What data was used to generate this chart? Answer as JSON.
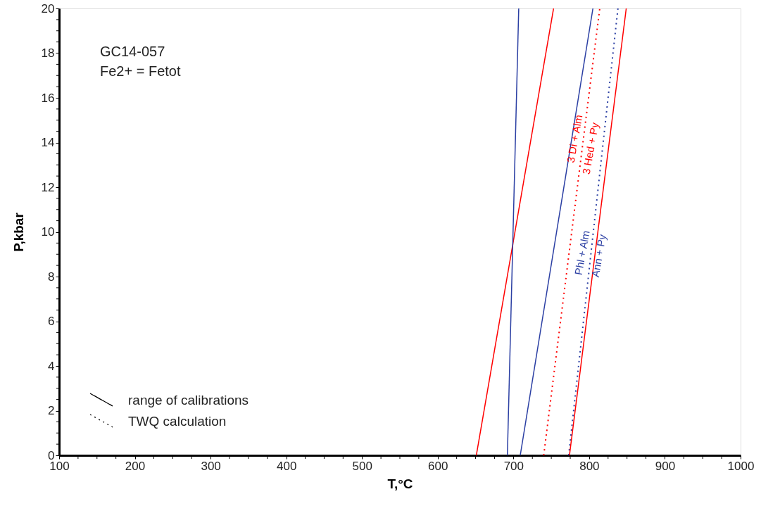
{
  "chart_data": {
    "type": "line",
    "xlabel": "T,°C",
    "ylabel": "P,kbar",
    "xlim": [
      100,
      1000
    ],
    "ylim": [
      0,
      20
    ],
    "xticks": [
      100,
      {
        "value": 125,
        "label": null
      },
      {
        "value": 150,
        "label": null
      },
      {
        "value": 175,
        "label": null
      },
      200,
      {
        "value": 225,
        "label": null
      },
      {
        "value": 250,
        "label": null
      },
      {
        "value": 275,
        "label": null
      },
      300,
      {
        "value": 325,
        "label": null
      },
      {
        "value": 350,
        "label": null
      },
      {
        "value": 375,
        "label": null
      },
      400,
      {
        "value": 425,
        "label": null
      },
      {
        "value": 450,
        "label": null
      },
      {
        "value": 475,
        "label": null
      },
      500,
      {
        "value": 525,
        "label": null
      },
      {
        "value": 550,
        "label": null
      },
      {
        "value": 575,
        "label": null
      },
      600,
      {
        "value": 625,
        "label": null
      },
      {
        "value": 650,
        "label": null
      },
      {
        "value": 675,
        "label": null
      },
      700,
      {
        "value": 725,
        "label": null
      },
      {
        "value": 750,
        "label": null
      },
      {
        "value": 775,
        "label": null
      },
      800,
      {
        "value": 825,
        "label": null
      },
      {
        "value": 850,
        "label": null
      },
      {
        "value": 875,
        "label": null
      },
      900,
      {
        "value": 925,
        "label": null
      },
      {
        "value": 950,
        "label": null
      },
      {
        "value": 975,
        "label": null
      },
      1000
    ],
    "yticks": [
      0,
      {
        "value": 0.5,
        "label": null
      },
      {
        "value": 1,
        "label": null
      },
      {
        "value": 1.5,
        "label": null
      },
      2,
      {
        "value": 2.5,
        "label": null
      },
      {
        "value": 3,
        "label": null
      },
      {
        "value": 3.5,
        "label": null
      },
      4,
      {
        "value": 4.5,
        "label": null
      },
      {
        "value": 5,
        "label": null
      },
      {
        "value": 5.5,
        "label": null
      },
      6,
      {
        "value": 6.5,
        "label": null
      },
      {
        "value": 7,
        "label": null
      },
      {
        "value": 7.5,
        "label": null
      },
      8,
      {
        "value": 8.5,
        "label": null
      },
      {
        "value": 9,
        "label": null
      },
      {
        "value": 9.5,
        "label": null
      },
      10,
      {
        "value": 10.5,
        "label": null
      },
      {
        "value": 11,
        "label": null
      },
      {
        "value": 11.5,
        "label": null
      },
      12,
      {
        "value": 12.5,
        "label": null
      },
      {
        "value": 13,
        "label": null
      },
      {
        "value": 13.5,
        "label": null
      },
      14,
      {
        "value": 14.5,
        "label": null
      },
      {
        "value": 15,
        "label": null
      },
      {
        "value": 15.5,
        "label": null
      },
      16,
      {
        "value": 16.5,
        "label": null
      },
      {
        "value": 17,
        "label": null
      },
      {
        "value": 17.5,
        "label": null
      },
      18,
      {
        "value": 18.5,
        "label": null
      },
      {
        "value": 19,
        "label": null
      },
      {
        "value": 19.5,
        "label": null
      },
      20
    ],
    "series": [
      {
        "color": "#ff0000",
        "line_style": "solid",
        "x": [
          651,
          753
        ],
        "values": [
          0,
          20
        ]
      },
      {
        "color": "#2b3fa3",
        "line_style": "solid",
        "x": [
          692,
          707
        ],
        "values": [
          0,
          20
        ]
      },
      {
        "color": "#2b3fa3",
        "line_style": "solid",
        "x": [
          709,
          805
        ],
        "values": [
          0,
          20
        ]
      },
      {
        "color": "#ff0000",
        "line_style": "dotted",
        "x": [
          740,
          814
        ],
        "values": [
          0,
          20
        ]
      },
      {
        "color": "#2b3fa3",
        "line_style": "dotted",
        "x": [
          773,
          838
        ],
        "values": [
          0,
          20
        ]
      },
      {
        "color": "#ff0000",
        "line_style": "solid",
        "x": [
          774,
          849
        ],
        "values": [
          0,
          20
        ]
      }
    ],
    "annotations": [
      "GC14-057",
      "Fe2+ = Fetot",
      "range of calibrations",
      "TWQ calculation",
      {
        "text": "3 Di + Alm",
        "x": 792,
        "y": 14.1
      },
      {
        "text": "3 Hed + Py",
        "x": 791,
        "y": 13.8
      },
      {
        "text": "Phl + Alm",
        "x": 802,
        "y": 9.0
      },
      {
        "text": "Ann + Py",
        "x": 802,
        "y": 9.0
      }
    ]
  }
}
